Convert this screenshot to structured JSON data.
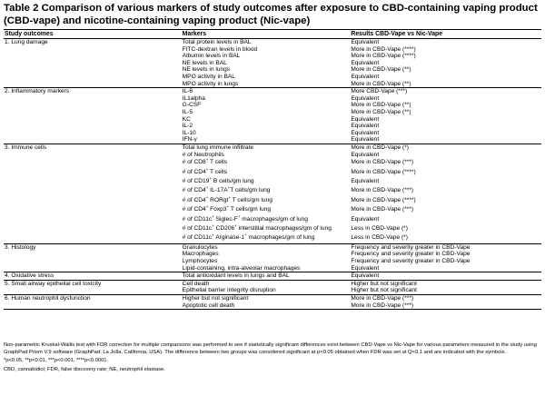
{
  "title": "Table 2 Comparison of various markers of study outcomes after exposure to CBD-containing vaping product (CBD-vape) and nicotine-containing vaping product (Nic-vape)",
  "headers": {
    "outcomes": "Study outcomes",
    "markers": "Markers",
    "results": "Results CBD-Vape vs Nic-Vape"
  },
  "rows": [
    {
      "outcome": "1. Lung damage",
      "marker": "Total protein levels in BAL",
      "result": "Equivalent"
    },
    {
      "outcome": "",
      "marker": "FITC-dextran levels in blood",
      "result": "More in CBD-Vape (****)"
    },
    {
      "outcome": "",
      "marker": "Albumin levels in BAL",
      "result": "More in CBD-Vape (****)"
    },
    {
      "outcome": "",
      "marker": "NE levels in BAL",
      "result": "Equivalent"
    },
    {
      "outcome": "",
      "marker": "NE levels in lungs",
      "result": "More in CBD-Vape (**)"
    },
    {
      "outcome": "",
      "marker": "MPO activity in BAL",
      "result": "Equivalent"
    },
    {
      "outcome": "",
      "marker": "MPO activity in lungs",
      "result": "More in CBD-Vape (**)"
    },
    {
      "outcome": "2. Inflammatory markers",
      "marker": "IL-6",
      "result": "More CBD-Vape (***)"
    },
    {
      "outcome": "",
      "marker": "IL1alpha",
      "result": "Equivalent"
    },
    {
      "outcome": "",
      "marker": "G-CSF",
      "result": "More in CBD-Vape (**)"
    },
    {
      "outcome": "",
      "marker": "IL-5",
      "result": "More in CBD-Vape (**)"
    },
    {
      "outcome": "",
      "marker": "KC",
      "result": "Equivalent"
    },
    {
      "outcome": "",
      "marker": "IL-2",
      "result": "Equivalent"
    },
    {
      "outcome": "",
      "marker": "IL-10",
      "result": "Equivalent"
    },
    {
      "outcome": "",
      "marker": "IFN-γ",
      "result": "Equivalent"
    },
    {
      "outcome": "3. Immune cells",
      "marker": "Total lung immune infiltrate",
      "result": "More in CBD-Vape (*)"
    },
    {
      "outcome": "",
      "marker": "# of Neutrophils",
      "result": "Equivalent"
    },
    {
      "outcome": "",
      "marker": "# of CD8",
      "sup": "+",
      "marker_rest": " T cells",
      "result": "More in CBD-Vape (***)"
    },
    {
      "outcome": "",
      "marker": "# of CD4",
      "sup": "+",
      "marker_rest": " T cells",
      "result": "More in CBD-Vape (****)"
    },
    {
      "outcome": "",
      "marker": "# of CD19",
      "sup": "+",
      "marker_rest": " B cells/gm lung",
      "result": "Equivalent"
    },
    {
      "outcome": "",
      "marker": "# of CD4",
      "sup": "+",
      "marker_rest": " IL-17A",
      "sup2": "+",
      "marker_rest2": "T cells/gm lung",
      "result": "More in CBD-Vape (***)"
    },
    {
      "outcome": "",
      "marker": "# of CD4",
      "sup": "+",
      "marker_rest": " RORgt",
      "sup2": "+",
      "marker_rest2": " T cells/gm lung",
      "result": "More in CBD-Vape (****)"
    },
    {
      "outcome": "",
      "marker": "# of CD4",
      "sup": "+",
      "marker_rest": " Foxp3",
      "sup2": "+",
      "marker_rest2": " T cells/gm lung",
      "result": "More in CBD-Vape (***)"
    },
    {
      "outcome": "",
      "marker": "# of CD11c",
      "sup": "+",
      "marker_rest": " Siglec-F",
      "sup2": "+",
      "marker_rest2": " macrophages/gm of lung",
      "result": "Equivalent"
    },
    {
      "outcome": "",
      "marker": "# of CD11c",
      "sup": "+",
      "marker_rest": " CD206",
      "sup2": "+",
      "marker_rest2": " interstitial macrophages/gm of lung",
      "result": "Less in CBD-Vape (*)"
    },
    {
      "outcome": "",
      "marker": "# of CD11c",
      "sup": "+",
      "marker_rest": " Arginase-1",
      "sup2": "+",
      "marker_rest2": " macrophages/gm of lung",
      "result": "Less in CBD-Vape (*)"
    },
    {
      "outcome": "3. Histology",
      "marker": "Granulocytes",
      "result": "Frequency and severity greater in CBD-Vape"
    },
    {
      "outcome": "",
      "marker": "Macrophages",
      "result": "Frequency and severity greater in CBD-Vape"
    },
    {
      "outcome": "",
      "marker": "Lymphocytes",
      "result": "Frequency and severity greater in CBD-Vape"
    },
    {
      "outcome": "",
      "marker": "Lipid-containing, intra-alveolar macrophages",
      "result": "Equivalent"
    },
    {
      "outcome": "4. Oxidative stress",
      "marker": "Total antioxidant levels in lungs and BAL",
      "result": "Equivalent"
    },
    {
      "outcome": "5. Small airway epithelial cell toxicity",
      "marker": "Cell death",
      "result": "Higher but not significant"
    },
    {
      "outcome": "",
      "marker": "Epithelial barrier integrity disruption",
      "result": "Higher but not significant"
    },
    {
      "outcome": "6. Human neutrophil dysfunction",
      "marker": "Higher but not significant",
      "result": "More in CBD-Vape (***)"
    },
    {
      "outcome": "",
      "marker": "Apoptotic cell death",
      "result": "More in CBD-Vape (***)"
    }
  ],
  "footnotes": [
    "Non-parametric Kruskal-Wallis test with FDR correction for multiple comparisons was performed to see if statistically significant differences exist between CBD-Vape vs Nic-Vape for various parameters measured in the study using GraphPad Prism V.9 software (GraphPad; La Jolla, California, USA). The difference between two groups was considered significant at p<0.05 obtained when FDR was set at Q<0.1 and are indicated with the symbols.",
    "*p<0.05, **p<0.01, ***p<0.001, ****p<0.0001.",
    "CBD, cannabidiol; FDR, false discovery rate; NE, neutrophil elastase."
  ]
}
